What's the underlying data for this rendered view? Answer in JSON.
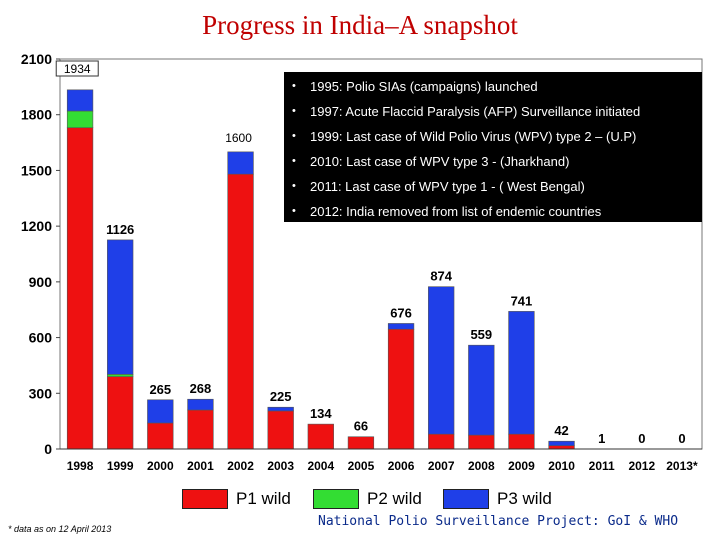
{
  "title": "Progress in India–A snapshot",
  "chart_data": {
    "type": "bar",
    "stacked": true,
    "categories": [
      "1998",
      "1999",
      "2000",
      "2001",
      "2002",
      "2003",
      "2004",
      "2005",
      "2006",
      "2007",
      "2008",
      "2009",
      "2010",
      "2011",
      "2012",
      "2013*"
    ],
    "series": [
      {
        "name": "P1 wild",
        "color": "#ee1111",
        "values": [
          1730,
          390,
          140,
          210,
          1480,
          205,
          134,
          66,
          645,
          80,
          75,
          80,
          18,
          1,
          0,
          0
        ]
      },
      {
        "name": "P2 wild",
        "color": "#33dd33",
        "values": [
          90,
          12,
          0,
          0,
          0,
          0,
          0,
          0,
          0,
          0,
          0,
          0,
          0,
          0,
          0,
          0
        ]
      },
      {
        "name": "P3 wild",
        "color": "#1f3fe8",
        "values": [
          114,
          724,
          125,
          58,
          120,
          20,
          0,
          0,
          31,
          794,
          484,
          661,
          24,
          0,
          0,
          0
        ]
      }
    ],
    "totals": [
      "1934",
      "1126",
      "265",
      "268",
      "1600",
      "225",
      "134",
      "66",
      "676",
      "874",
      "559",
      "741",
      "42",
      "1",
      "0",
      "0"
    ],
    "yticks": [
      0,
      300,
      600,
      900,
      1200,
      1500,
      1800,
      2100
    ],
    "ylim": [
      0,
      2100
    ]
  },
  "milestones": [
    "1995: Polio SIAs (campaigns) launched",
    "1997: Acute Flaccid Paralysis (AFP) Surveillance initiated",
    "1999: Last case of Wild Polio Virus (WPV) type  2 – (U.P)",
    "2010: Last case of WPV type 3  - (Jharkhand)",
    "2011: Last case of WPV type 1  - ( West Bengal)",
    "2012: India removed from list of endemic countries"
  ],
  "legend": [
    "P1 wild",
    "P2 wild",
    "P3 wild"
  ],
  "footnote": "* data as on 12 April 2013",
  "source": "National Polio Surveillance Project: GoI & WHO"
}
